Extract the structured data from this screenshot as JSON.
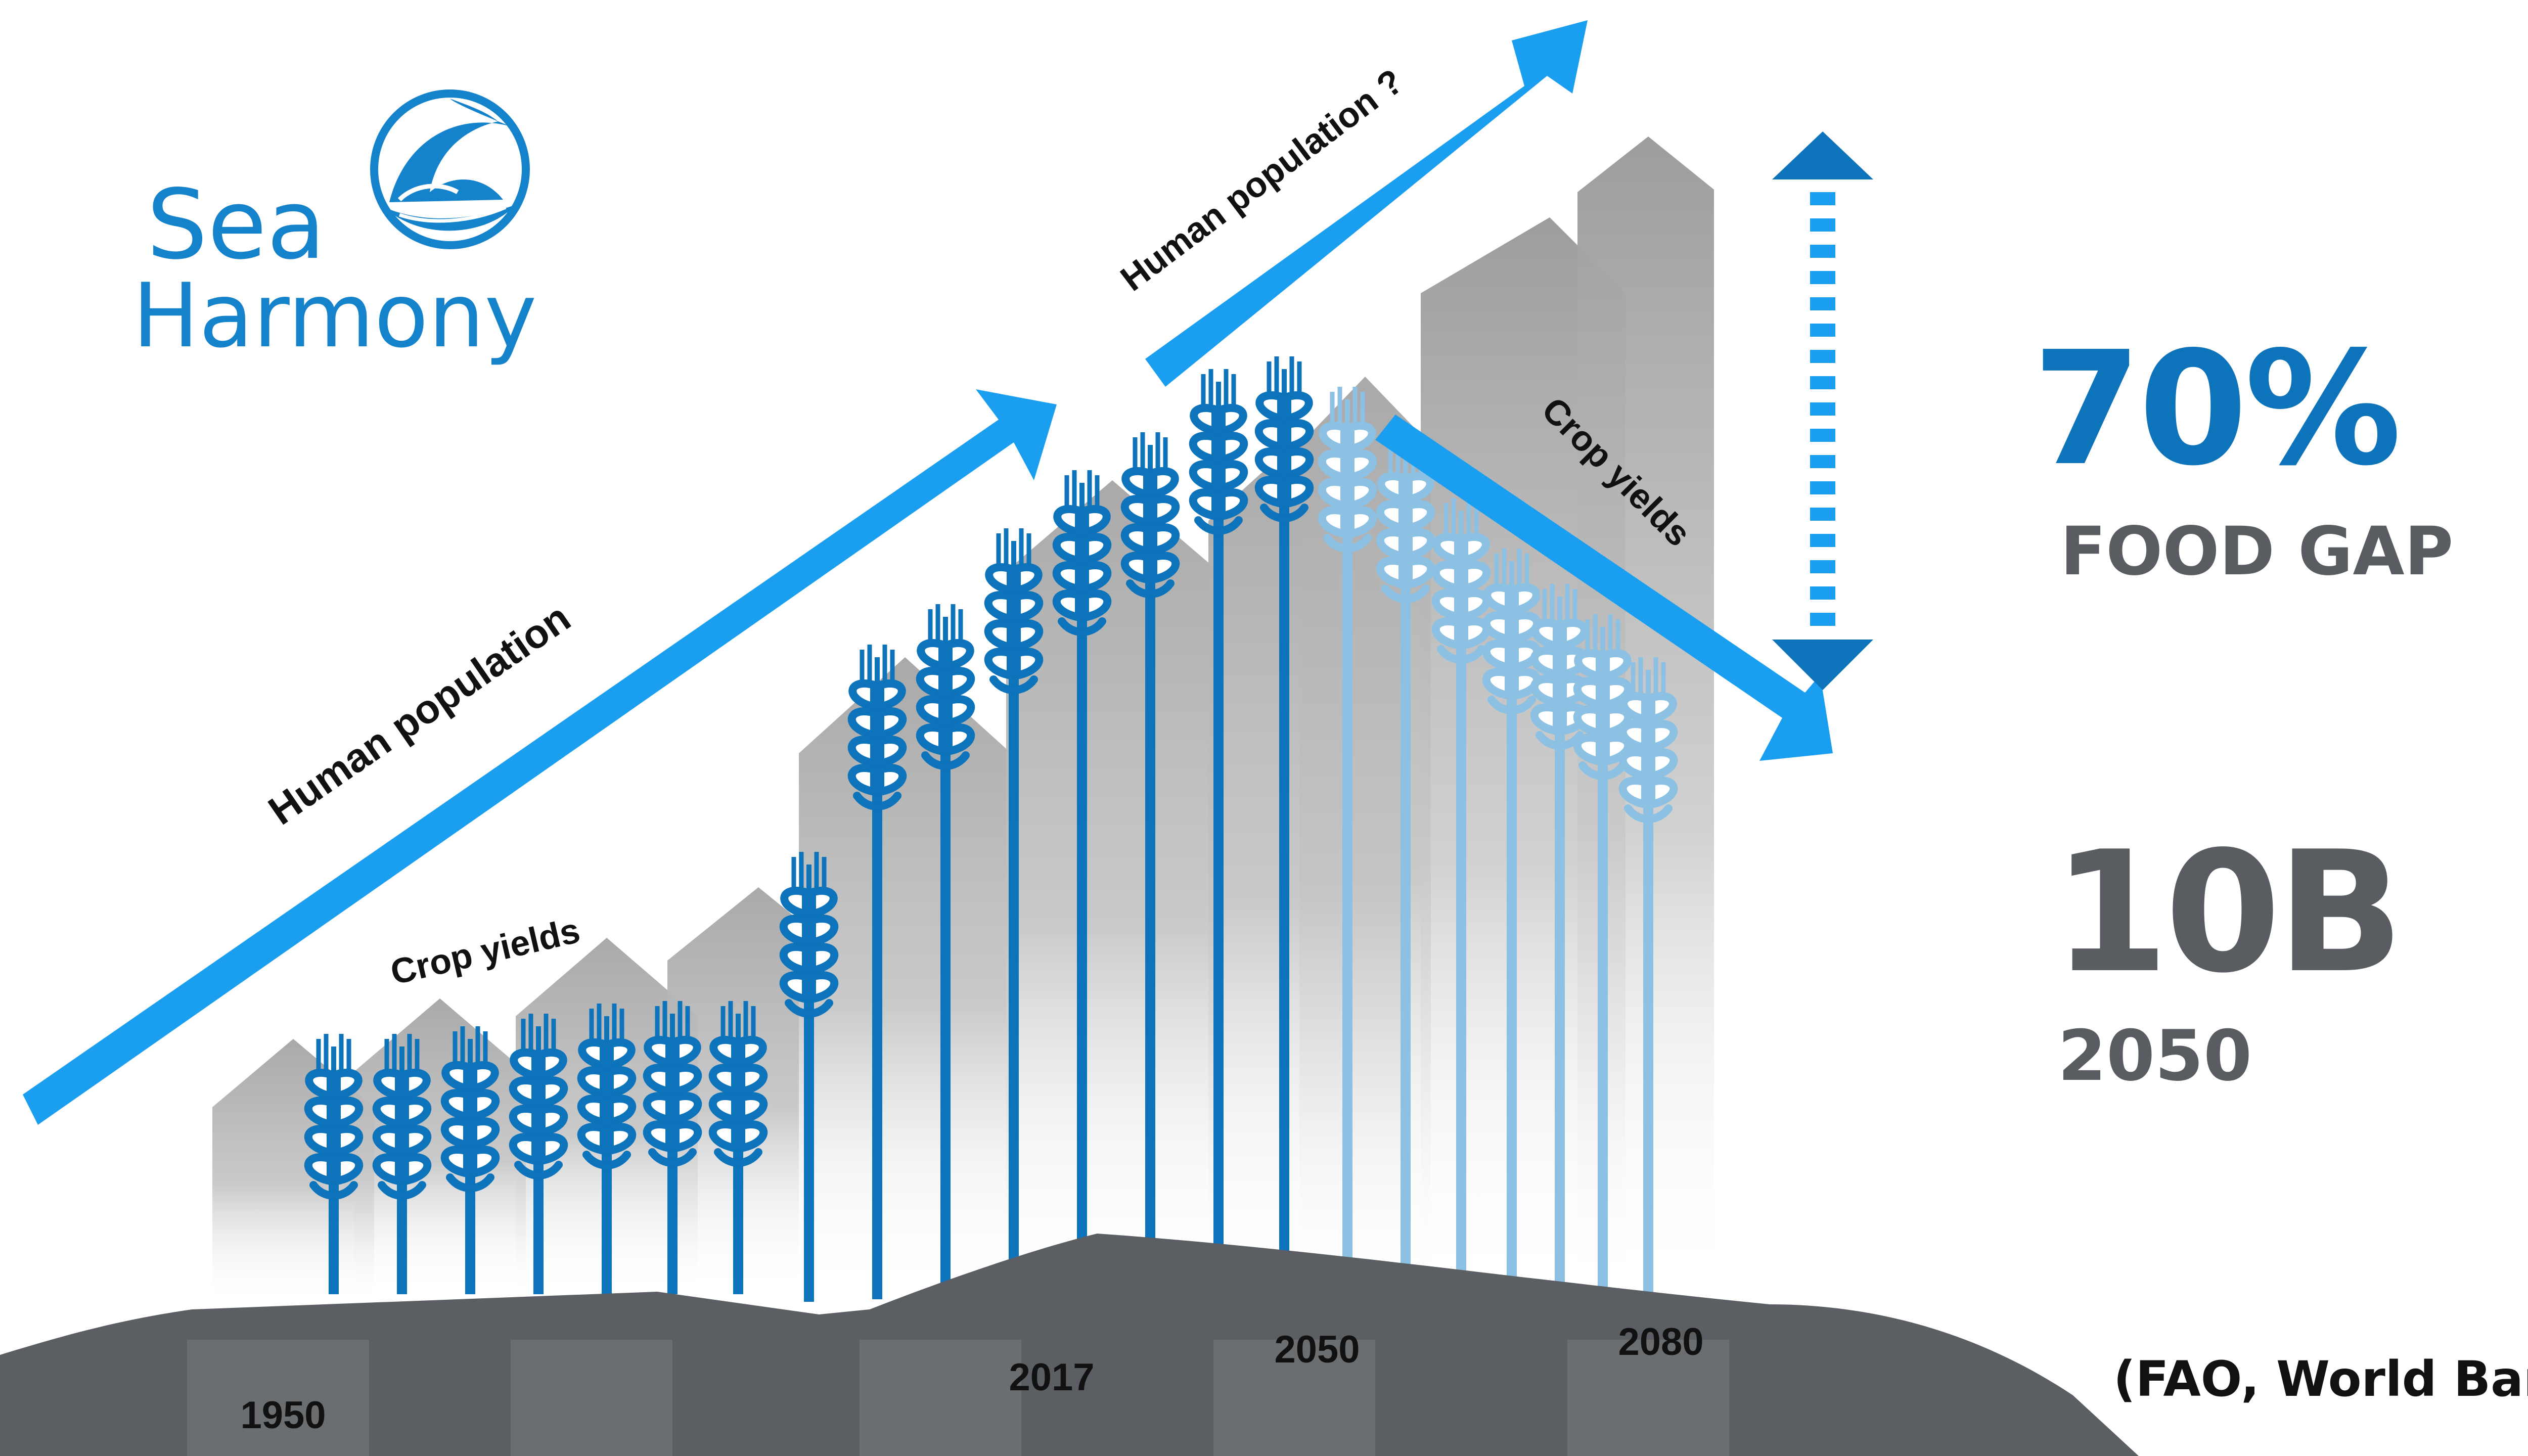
{
  "logo": {
    "line1": "Sea",
    "line2": "Harmony"
  },
  "arrows": {
    "population_past": "Human population",
    "population_future": "Human population ?",
    "crop_yields_past": "Crop yields",
    "crop_yields_future": "Crop yields"
  },
  "years": [
    "1950",
    "2017",
    "2050",
    "2080"
  ],
  "stats": {
    "gap_value": "70%",
    "gap_label": "FOOD GAP",
    "population_value": "10B",
    "population_year": "2050"
  },
  "source": "(FAO, World Bank)",
  "colors": {
    "accent_blue": "#1a9ff0",
    "dark_blue": "#0d73bb",
    "logo_blue": "#1582cc",
    "stat_gray": "#595c60",
    "ground": "#5b5e62",
    "bar_gray": "#b3b3b3"
  },
  "icons": {
    "wheat": "wheat-icon",
    "gap_arrow": "double-arrow-icon",
    "logo": "dolphin-icon"
  }
}
